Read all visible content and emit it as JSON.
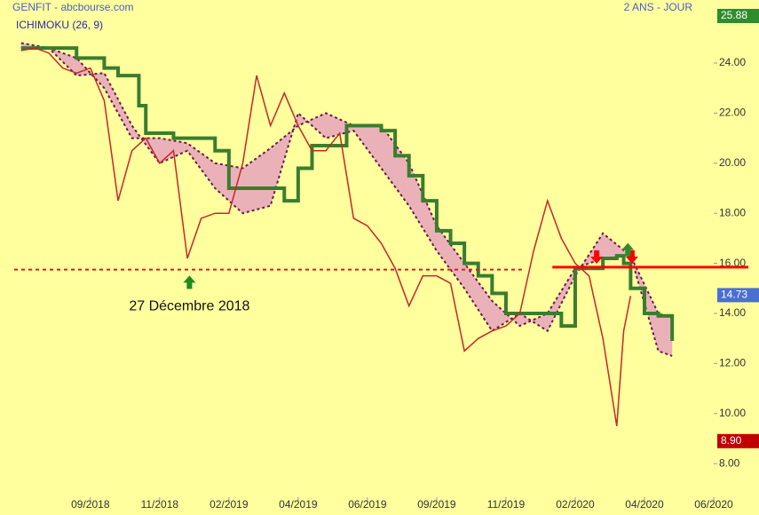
{
  "chart_data": {
    "type": "ichimoku",
    "title": "GENFIT - abcbourse.com",
    "period": "2 ANS - JOUR",
    "indicator": "ICHIMOKU (26, 9)",
    "background": "#ffff9e",
    "grid": false,
    "xlim": [
      -1,
      100
    ],
    "xticks": [
      {
        "value": 10,
        "label": "09/2018"
      },
      {
        "value": 20,
        "label": "11/2018"
      },
      {
        "value": 30,
        "label": "02/2019"
      },
      {
        "value": 40,
        "label": "04/2019"
      },
      {
        "value": 50,
        "label": "06/2019"
      },
      {
        "value": 60,
        "label": "09/2019"
      },
      {
        "value": 70,
        "label": "11/2019"
      },
      {
        "value": 80,
        "label": "02/2020"
      },
      {
        "value": 90,
        "label": "04/2020"
      },
      {
        "value": 100,
        "label": "06/2020"
      }
    ],
    "ylim": [
      6.8,
      25.88
    ],
    "yticks": [
      {
        "value": 8,
        "label": "8.00"
      },
      {
        "value": 10,
        "label": "10.00"
      },
      {
        "value": 12,
        "label": "12.00"
      },
      {
        "value": 14,
        "label": "14.00"
      },
      {
        "value": 16,
        "label": "16.00"
      },
      {
        "value": 18,
        "label": "18.00"
      },
      {
        "value": 20,
        "label": "20.00"
      },
      {
        "value": 22,
        "label": "22.00"
      },
      {
        "value": 24,
        "label": "24.00"
      }
    ],
    "price": {
      "color": "#c62828",
      "x": [
        0,
        2,
        4,
        6,
        8,
        10,
        12,
        14,
        16,
        18,
        20,
        22,
        24,
        26,
        28,
        30,
        32,
        34,
        36,
        38,
        40,
        42,
        44,
        46,
        48,
        50,
        52,
        54,
        56,
        58,
        60,
        62,
        64,
        66,
        68,
        70,
        72,
        74,
        76,
        78,
        80,
        82,
        84,
        86,
        87,
        88
      ],
      "values": [
        24.5,
        24.6,
        24.4,
        23.8,
        23.6,
        23.8,
        22.5,
        18.5,
        20.5,
        21.0,
        20.0,
        20.5,
        16.2,
        17.8,
        18.0,
        18.0,
        20.0,
        23.5,
        21.5,
        22.8,
        21.5,
        20.5,
        20.5,
        21.2,
        17.8,
        17.5,
        16.8,
        15.8,
        14.3,
        15.5,
        15.5,
        15.2,
        12.5,
        13.0,
        13.3,
        13.5,
        14.0,
        16.5,
        18.5,
        17.0,
        16.0,
        15.5,
        13.0,
        9.5,
        13.3,
        14.7
      ]
    },
    "kijun": {
      "color": "#3a7d2e",
      "x": [
        0,
        4,
        8,
        12,
        14,
        17,
        18,
        22,
        26,
        28,
        30,
        36,
        38,
        40,
        42,
        46,
        47,
        52,
        54,
        56,
        58,
        60,
        62,
        64,
        66,
        68,
        70,
        74,
        76,
        78,
        80,
        82,
        84,
        86,
        87,
        88,
        90,
        92,
        94
      ],
      "values": [
        24.6,
        24.6,
        24.2,
        23.8,
        23.5,
        22.3,
        21.2,
        21.0,
        21.0,
        20.5,
        19.0,
        19.0,
        18.5,
        19.8,
        20.7,
        20.7,
        21.5,
        21.3,
        20.3,
        19.5,
        18.5,
        17.3,
        16.8,
        16.0,
        15.5,
        14.8,
        14.0,
        14.0,
        14.0,
        13.5,
        15.8,
        15.8,
        16.2,
        16.3,
        16.0,
        15.0,
        14.0,
        13.9,
        12.9
      ]
    },
    "cloud": {
      "fill": "#eab2b8",
      "border": "#6a1a4a",
      "x": [
        0,
        4,
        8,
        12,
        16,
        20,
        24,
        28,
        32,
        36,
        40,
        44,
        48,
        52,
        56,
        60,
        64,
        68,
        72,
        76,
        80,
        84,
        88,
        92,
        94
      ],
      "span_a": [
        24.8,
        24.6,
        23.5,
        23.6,
        21.5,
        20.0,
        20.5,
        19.0,
        18.0,
        18.3,
        22.0,
        21.0,
        21.3,
        19.8,
        18.3,
        16.5,
        15.0,
        13.3,
        14.0,
        13.3,
        15.5,
        17.2,
        16.3,
        12.5,
        12.3
      ],
      "span_b": [
        24.6,
        24.6,
        24.2,
        23.0,
        21.0,
        21.0,
        20.8,
        20.0,
        19.8,
        20.6,
        21.5,
        22.0,
        21.5,
        21.5,
        20.0,
        17.5,
        16.0,
        14.5,
        13.5,
        14.0,
        15.8,
        16.2,
        16.3,
        14.0,
        13.8
      ]
    },
    "reference_lines": [
      {
        "value": 15.75,
        "x_range": [
          -1,
          72.3
        ],
        "style": "dashed",
        "color": "#d32020"
      },
      {
        "value": 15.85,
        "x_range": [
          76.7,
          105
        ],
        "style": "solid",
        "color": "#ff0000"
      }
    ],
    "annotations": [
      {
        "text": "27 Décembre 2018",
        "x": 24.3,
        "y": 15.3,
        "marker": "up",
        "color": "#1f8a1f"
      },
      {
        "x": 83.1,
        "y": 16.2,
        "marker": "down",
        "color": "#ff0000"
      },
      {
        "x": 88.2,
        "y": 16.2,
        "marker": "down",
        "color": "#ff0000"
      },
      {
        "x": 87.6,
        "y": 16.6,
        "marker": "up",
        "color": "#2e8b2e"
      }
    ],
    "value_tags": [
      {
        "value": 25.88,
        "label": "25.88",
        "color": "#2e8b2e"
      },
      {
        "value": 14.73,
        "label": "14.73",
        "color": "#4b6fd1"
      },
      {
        "value": 8.9,
        "label": "8.90",
        "color": "#c00000"
      }
    ]
  }
}
